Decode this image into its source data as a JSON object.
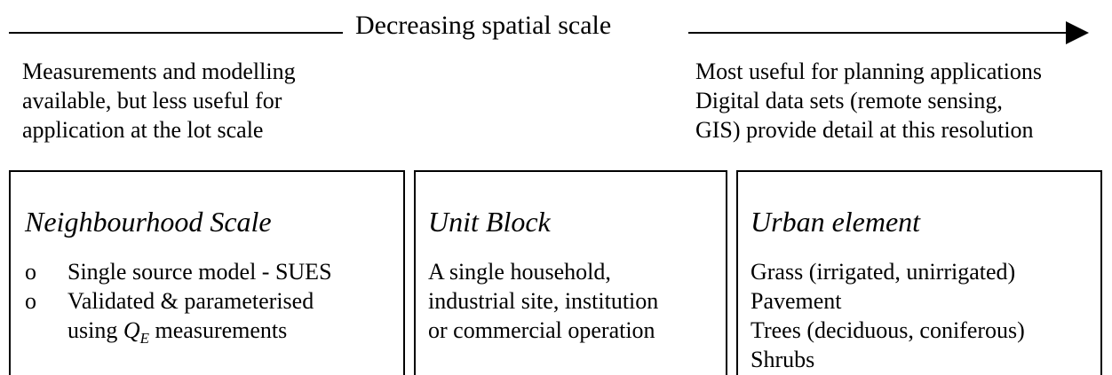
{
  "heading": "Decreasing spatial scale",
  "left_note": [
    "Measurements and modelling",
    "available, but less useful for",
    "application at the lot scale"
  ],
  "right_note": [
    "Most useful for planning applications",
    "Digital data sets (remote sensing,",
    "GIS) provide detail at this resolution"
  ],
  "boxes": [
    {
      "title": "Neighbourhood Scale",
      "items": [
        "Single source model - SUES",
        "Validated & parameterised"
      ],
      "items_qe": {
        "prefix": "using ",
        "symbol": "Q",
        "subscript": "E",
        "suffix": " measurements"
      }
    },
    {
      "title": "Unit Block",
      "items": [
        "A single household,",
        "industrial site, institution",
        "or commercial operation"
      ]
    },
    {
      "title": "Urban element",
      "items": [
        "Grass (irrigated, unirrigated)",
        "Pavement",
        "Trees (deciduous, coniferous)",
        "Shrubs"
      ]
    }
  ]
}
